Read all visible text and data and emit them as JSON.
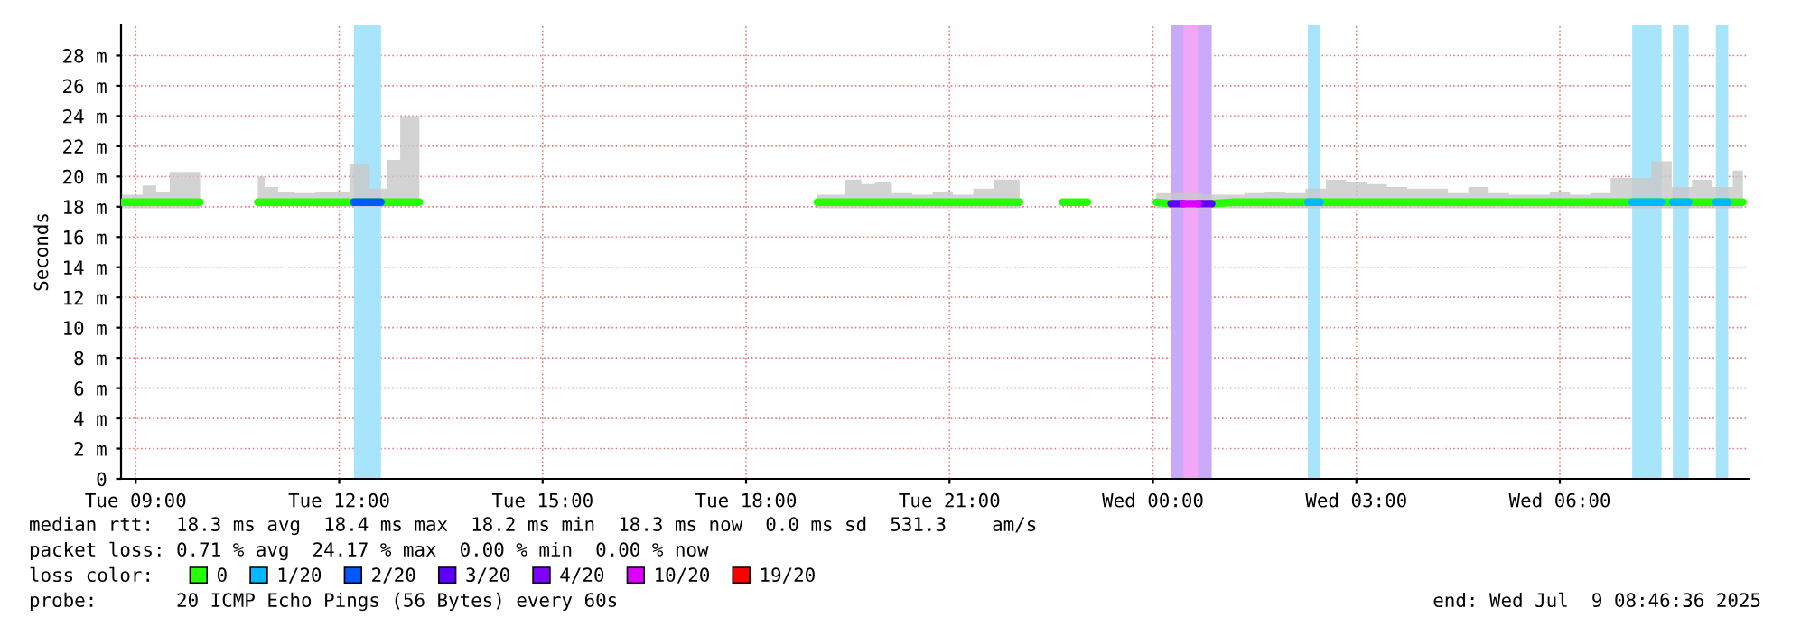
{
  "chart_data": {
    "type": "line",
    "ylabel": "Seconds",
    "legend_title": "loss color:",
    "legend": "bottom",
    "grid": true,
    "line_style": "solid",
    "xlim": [
      "2025-07-08T08:47",
      "2025-07-09T08:47"
    ],
    "xticks": [
      {
        "value": "2025-07-08T09:00",
        "label": "Tue 09:00"
      },
      {
        "value": "2025-07-08T12:00",
        "label": "Tue 12:00"
      },
      {
        "value": "2025-07-08T15:00",
        "label": "Tue 15:00"
      },
      {
        "value": "2025-07-08T18:00",
        "label": "Tue 18:00"
      },
      {
        "value": "2025-07-08T21:00",
        "label": "Tue 21:00"
      },
      {
        "value": "2025-07-09T00:00",
        "label": "Wed 00:00"
      },
      {
        "value": "2025-07-09T03:00",
        "label": "Wed 03:00"
      },
      {
        "value": "2025-07-09T06:00",
        "label": "Wed 06:00"
      }
    ],
    "ylim": [
      0,
      30
    ],
    "yticks": [
      0,
      {
        "value": 2,
        "label": "2 m"
      },
      {
        "value": 4,
        "label": "4 m"
      },
      {
        "value": 6,
        "label": "6 m"
      },
      {
        "value": 8,
        "label": "8 m"
      },
      {
        "value": 10,
        "label": "10 m"
      },
      {
        "value": 12,
        "label": "12 m"
      },
      {
        "value": 14,
        "label": "14 m"
      },
      {
        "value": 16,
        "label": "16 m"
      },
      {
        "value": 18,
        "label": "18 m"
      },
      {
        "value": 20,
        "label": "20 m"
      },
      {
        "value": 22,
        "label": "22 m"
      },
      {
        "value": 24,
        "label": "24 m"
      },
      {
        "value": 26,
        "label": "26 m"
      },
      {
        "value": 28,
        "label": "28 m"
      }
    ],
    "bands": [
      {
        "axis": "x",
        "from": "2025-07-08T12:13",
        "to": "2025-07-08T12:37",
        "color": "#a8e4fa"
      },
      {
        "axis": "x",
        "from": "2025-07-09T00:16",
        "to": "2025-07-09T00:52",
        "color": "#c8aaf8"
      },
      {
        "axis": "x",
        "from": "2025-07-09T00:27",
        "to": "2025-07-09T00:40",
        "color": "#f2a6f8"
      },
      {
        "axis": "x",
        "from": "2025-07-09T02:17",
        "to": "2025-07-09T02:28",
        "color": "#a8e4fa"
      },
      {
        "axis": "x",
        "from": "2025-07-09T07:04",
        "to": "2025-07-09T07:30",
        "color": "#a8e4fa"
      },
      {
        "axis": "x",
        "from": "2025-07-09T07:40",
        "to": "2025-07-09T07:54",
        "color": "#a8e4fa"
      },
      {
        "axis": "x",
        "from": "2025-07-09T08:18",
        "to": "2025-07-09T08:29",
        "color": "#a8e4fa"
      }
    ],
    "series": [
      {
        "name": "0",
        "color": "#26ff00",
        "x": [
          "2025-07-08T08:48",
          "2025-07-08T09:00",
          "2025-07-08T09:12",
          "2025-07-08T09:24",
          "2025-07-08T09:36",
          "2025-07-08T09:57",
          "2025-07-08T10:18",
          "2025-07-08T10:48",
          "2025-07-08T11:00",
          "2025-07-08T11:12",
          "2025-07-08T11:30",
          "2025-07-08T11:48",
          "2025-07-08T12:00",
          "2025-07-08T12:18",
          "2025-07-08T12:36",
          "2025-07-08T12:48",
          "2025-07-08T13:00",
          "2025-07-08T13:11",
          "2025-07-08T16:00",
          "2025-07-08T19:03",
          "2025-07-08T19:18",
          "2025-07-08T19:36",
          "2025-07-08T19:48",
          "2025-07-08T20:00",
          "2025-07-08T20:18",
          "2025-07-08T20:36",
          "2025-07-08T20:54",
          "2025-07-08T21:12",
          "2025-07-08T21:30",
          "2025-07-08T21:48",
          "2025-07-08T22:02",
          "2025-07-08T22:21",
          "2025-07-09T00:03",
          "2025-07-09T00:16",
          "2025-07-09T00:34",
          "2025-07-09T00:52",
          "2025-07-09T01:12",
          "2025-07-09T01:30",
          "2025-07-09T01:48",
          "2025-07-09T02:06",
          "2025-07-09T02:24",
          "2025-07-09T02:42",
          "2025-07-09T03:00",
          "2025-07-09T03:18",
          "2025-07-09T03:36",
          "2025-07-09T03:54",
          "2025-07-09T04:12",
          "2025-07-09T04:30",
          "2025-07-09T04:48",
          "2025-07-09T05:06",
          "2025-07-09T05:24",
          "2025-07-09T05:42",
          "2025-07-09T06:00",
          "2025-07-09T06:18",
          "2025-07-09T06:36",
          "2025-07-09T06:54",
          "2025-07-09T07:12",
          "2025-07-09T07:30",
          "2025-07-09T07:48",
          "2025-07-09T08:06",
          "2025-07-09T08:24",
          "2025-07-09T08:42"
        ],
        "values": [
          18.3,
          18.3,
          18.3,
          18.3,
          18.3,
          18.3,
          null,
          18.3,
          18.3,
          18.3,
          18.3,
          18.3,
          18.3,
          18.3,
          18.3,
          18.3,
          18.3,
          18.3,
          null,
          18.3,
          18.3,
          18.3,
          18.3,
          18.3,
          18.3,
          18.3,
          18.3,
          18.3,
          18.3,
          18.3,
          18.3,
          null,
          18.3,
          18.2,
          null,
          18.2,
          18.3,
          18.3,
          18.3,
          18.3,
          18.3,
          18.3,
          18.3,
          18.3,
          18.3,
          18.3,
          18.3,
          18.3,
          18.3,
          18.3,
          18.3,
          18.3,
          18.3,
          18.3,
          18.3,
          18.3,
          18.3,
          18.3,
          18.3,
          18.3,
          18.3,
          18.3
        ],
        "lower": [
          17.9,
          17.9,
          17.9,
          17.9,
          17.9,
          17.9,
          null,
          18.0,
          18.0,
          18.0,
          18.0,
          18.0,
          18.0,
          18.0,
          18.0,
          18.0,
          18.0,
          18.0,
          null,
          17.9,
          17.9,
          17.9,
          17.9,
          17.9,
          17.9,
          17.9,
          17.9,
          17.9,
          17.9,
          17.9,
          17.9,
          null,
          17.9,
          17.9,
          17.9,
          17.9,
          17.9,
          17.9,
          17.9,
          17.9,
          17.9,
          17.9,
          17.9,
          17.9,
          17.9,
          17.9,
          17.9,
          17.9,
          17.9,
          17.9,
          17.9,
          17.9,
          17.9,
          17.9,
          17.9,
          17.9,
          17.9,
          17.9,
          17.9,
          17.9,
          17.9,
          17.9
        ],
        "upper": [
          18.8,
          18.8,
          19.4,
          19.0,
          20.3,
          20.3,
          null,
          20.0,
          19.3,
          19.0,
          18.9,
          19.0,
          19.0,
          20.8,
          19.2,
          21.1,
          24.0,
          24.0,
          null,
          18.8,
          18.8,
          19.8,
          19.5,
          19.6,
          18.9,
          18.8,
          19.0,
          18.8,
          19.2,
          19.8,
          19.8,
          null,
          18.9,
          18.9,
          18.9,
          18.8,
          18.8,
          18.9,
          19.0,
          18.9,
          19.2,
          19.8,
          19.6,
          19.5,
          19.3,
          19.2,
          19.2,
          18.9,
          19.3,
          18.9,
          18.8,
          18.8,
          19.0,
          18.8,
          18.9,
          19.9,
          19.9,
          21.0,
          19.3,
          19.8,
          19.3,
          20.4
        ]
      },
      {
        "color": "#28fc00",
        "x": [
          "2025-07-08T22:40",
          "2025-07-08T22:51",
          "2025-07-08T23:02"
        ],
        "values": [
          18.3,
          18.3,
          18.3
        ]
      },
      {
        "name": "1/20",
        "color": "#00b8ff",
        "x": [
          "2025-07-09T02:17",
          "2025-07-09T02:28",
          "2025-07-09T02:36",
          "2025-07-09T07:04",
          "2025-07-09T07:30",
          "2025-07-09T07:35",
          "2025-07-09T07:40",
          "2025-07-09T07:54",
          "2025-07-09T08:06",
          "2025-07-09T08:18",
          "2025-07-09T08:29"
        ],
        "values": [
          18.3,
          18.3,
          null,
          18.3,
          18.3,
          null,
          18.3,
          18.3,
          null,
          18.3,
          18.3
        ]
      },
      {
        "name": "2/20",
        "color": "#0059ff",
        "x": [
          "2025-07-08T12:13",
          "2025-07-08T12:37"
        ],
        "values": [
          18.3,
          18.3
        ]
      },
      {
        "name": "3/20",
        "color": "#5e00ff",
        "x": [
          "2025-07-09T00:16",
          "2025-07-09T00:27",
          "2025-07-09T00:34",
          "2025-07-09T00:40",
          "2025-07-09T00:52"
        ],
        "values": [
          18.2,
          18.2,
          null,
          18.2,
          18.2
        ]
      },
      {
        "name": "4/20",
        "color": "#7e00ff"
      },
      {
        "name": "10/20",
        "color": "#dd00ff",
        "x": [
          "2025-07-09T00:27",
          "2025-07-09T00:40"
        ],
        "values": [
          18.2,
          18.2
        ]
      },
      {
        "name": "19/20",
        "color": "#ff0000"
      }
    ],
    "annotations": [
      "median rtt:  18.3 ms avg  18.4 ms max  18.2 ms min  18.3 ms now  0.0 ms sd  531.3    am/s",
      "packet loss: 0.71 % avg  24.17 % max  0.00 % min  0.00 % now",
      "probe:       20 ICMP Echo Pings (56 Bytes) every 60s",
      "end: Wed Jul  9 08:46:36 2025"
    ]
  }
}
